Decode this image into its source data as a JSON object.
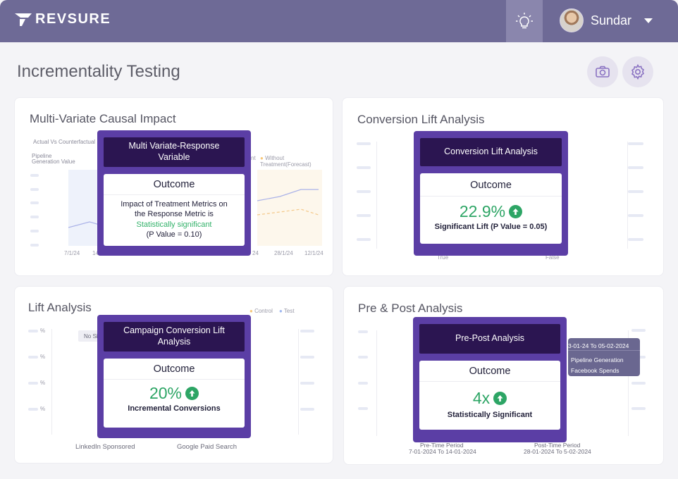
{
  "header": {
    "brand": "REVSURE",
    "user_name": "Sundar"
  },
  "page": {
    "title": "Incrementality Testing"
  },
  "icons": {
    "bulb": "lightbulb-icon",
    "camera": "camera-icon",
    "settings": "gear-icon",
    "caret": "chevron-down-icon",
    "arrow_up": "arrow-up-circle-icon"
  },
  "colors": {
    "header": "#6e6a96",
    "modal_frame": "#5b3ea5",
    "modal_head": "#2b1551",
    "positive": "#2da565"
  },
  "cards": {
    "mvci": {
      "title": "Multi-Variate Causal Impact",
      "chart_label": "Actual Vs Counterfactual",
      "y_label_1": "Pipeline",
      "y_label_2": "Generation Value",
      "legend_visible_fragment": "nt",
      "legend_forecast": "Without Treatment(Forecast)",
      "x_ticks": [
        "7/1/24",
        "14",
        "24",
        "28/1/24",
        "12/1/24"
      ],
      "modal": {
        "head": "Multi Variate-Response Variable",
        "outcome": "Outcome",
        "line1": "Impact of Treatment Metrics on",
        "line2": "the Response Metric is",
        "line3": "Statistically significant",
        "line4": "(P Value = 0.10)"
      }
    },
    "cla": {
      "title": "Conversion Lift Analysis",
      "x_true": "True",
      "x_false": "False",
      "modal": {
        "head": "Conversion Lift Analysis",
        "outcome": "Outcome",
        "value": "22.9%",
        "subtitle": "Significant Lift  (P Value = 0.05)"
      }
    },
    "lift": {
      "title": "Lift Analysis",
      "legend_control": "Control",
      "legend_test": "Test",
      "y_tick": "%",
      "badge_fragment": "No Si",
      "x_linkedin": "LinkedIn Sponsored",
      "x_google": "Google Paid Search",
      "modal": {
        "head": "Campaign Conversion Lift Analysis",
        "outcome": "Outcome",
        "value": "20%",
        "subtitle": "Incremental Conversions"
      }
    },
    "prepost": {
      "title": "Pre & Post Analysis",
      "pre_period_label": "Pre-Time Period",
      "pre_period_dates": "7-01-2024 To 14-01-2024",
      "post_period_label": "Post-Time Period",
      "post_period_dates": "28-01-2024 To 5-02-2024",
      "tooltip": {
        "date_range": "3-01-24 To 05-02-2024",
        "item1": "Pipeline Generation",
        "item2": "Facebook Spends"
      },
      "modal": {
        "head": "Pre-Post Analysis",
        "outcome": "Outcome",
        "value": "4x",
        "subtitle": "Statistically Significant"
      }
    }
  }
}
